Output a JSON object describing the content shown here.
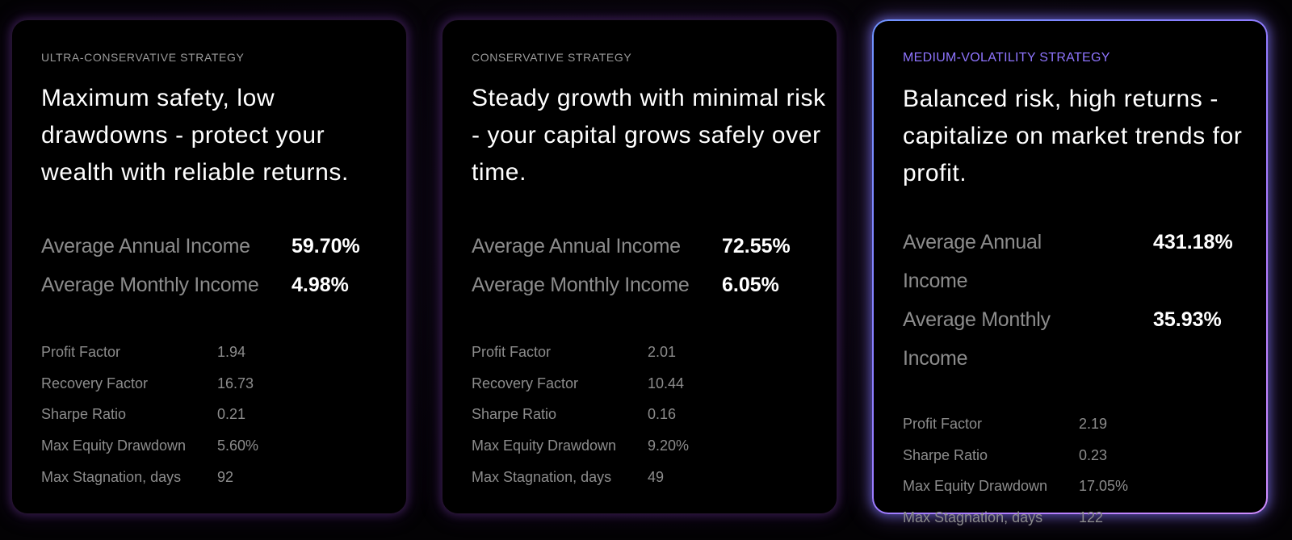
{
  "cards": [
    {
      "label": "ULTRA-CONSERVATIVE STRATEGY",
      "description": "Maximum safety, low drawdowns - protect your wealth with reliable returns.",
      "income": [
        {
          "label": "Average Annual Income",
          "value": "59.70%"
        },
        {
          "label": "Average Monthly Income",
          "value": "4.98%"
        }
      ],
      "metrics": [
        {
          "label": "Profit Factor",
          "value": "1.94"
        },
        {
          "label": "Recovery Factor",
          "value": "16.73"
        },
        {
          "label": "Sharpe Ratio",
          "value": "0.21"
        },
        {
          "label": "Max Equity Drawdown",
          "value": "5.60%"
        },
        {
          "label": "Max Stagnation, days",
          "value": "92"
        }
      ]
    },
    {
      "label": "CONSERVATIVE STRATEGY",
      "description": "Steady growth with minimal risk - your capital grows safely over time.",
      "income": [
        {
          "label": "Average Annual Income",
          "value": "72.55%"
        },
        {
          "label": "Average Monthly Income",
          "value": "6.05%"
        }
      ],
      "metrics": [
        {
          "label": "Profit Factor",
          "value": "2.01"
        },
        {
          "label": "Recovery Factor",
          "value": "10.44"
        },
        {
          "label": "Sharpe Ratio",
          "value": "0.16"
        },
        {
          "label": "Max Equity Drawdown",
          "value": "9.20%"
        },
        {
          "label": "Max Stagnation, days",
          "value": "49"
        }
      ]
    },
    {
      "label": "MEDIUM-VOLATILITY STRATEGY",
      "description": "Balanced risk, high returns - capitalize on market trends for profit.",
      "income": [
        {
          "label": "Average Annual Income",
          "value": "431.18%"
        },
        {
          "label": "Average Monthly Income",
          "value": "35.93%"
        }
      ],
      "metrics": [
        {
          "label": "Profit Factor",
          "value": "2.19"
        },
        {
          "label": "Sharpe Ratio",
          "value": "0.23"
        },
        {
          "label": "Max Equity Drawdown",
          "value": "17.05%"
        },
        {
          "label": "Max Stagnation, days",
          "value": "122"
        }
      ]
    }
  ],
  "colors": {
    "active_label": "#8f75ff",
    "active_border_start": "#6f93ff",
    "active_border_end": "#cf8dff"
  }
}
